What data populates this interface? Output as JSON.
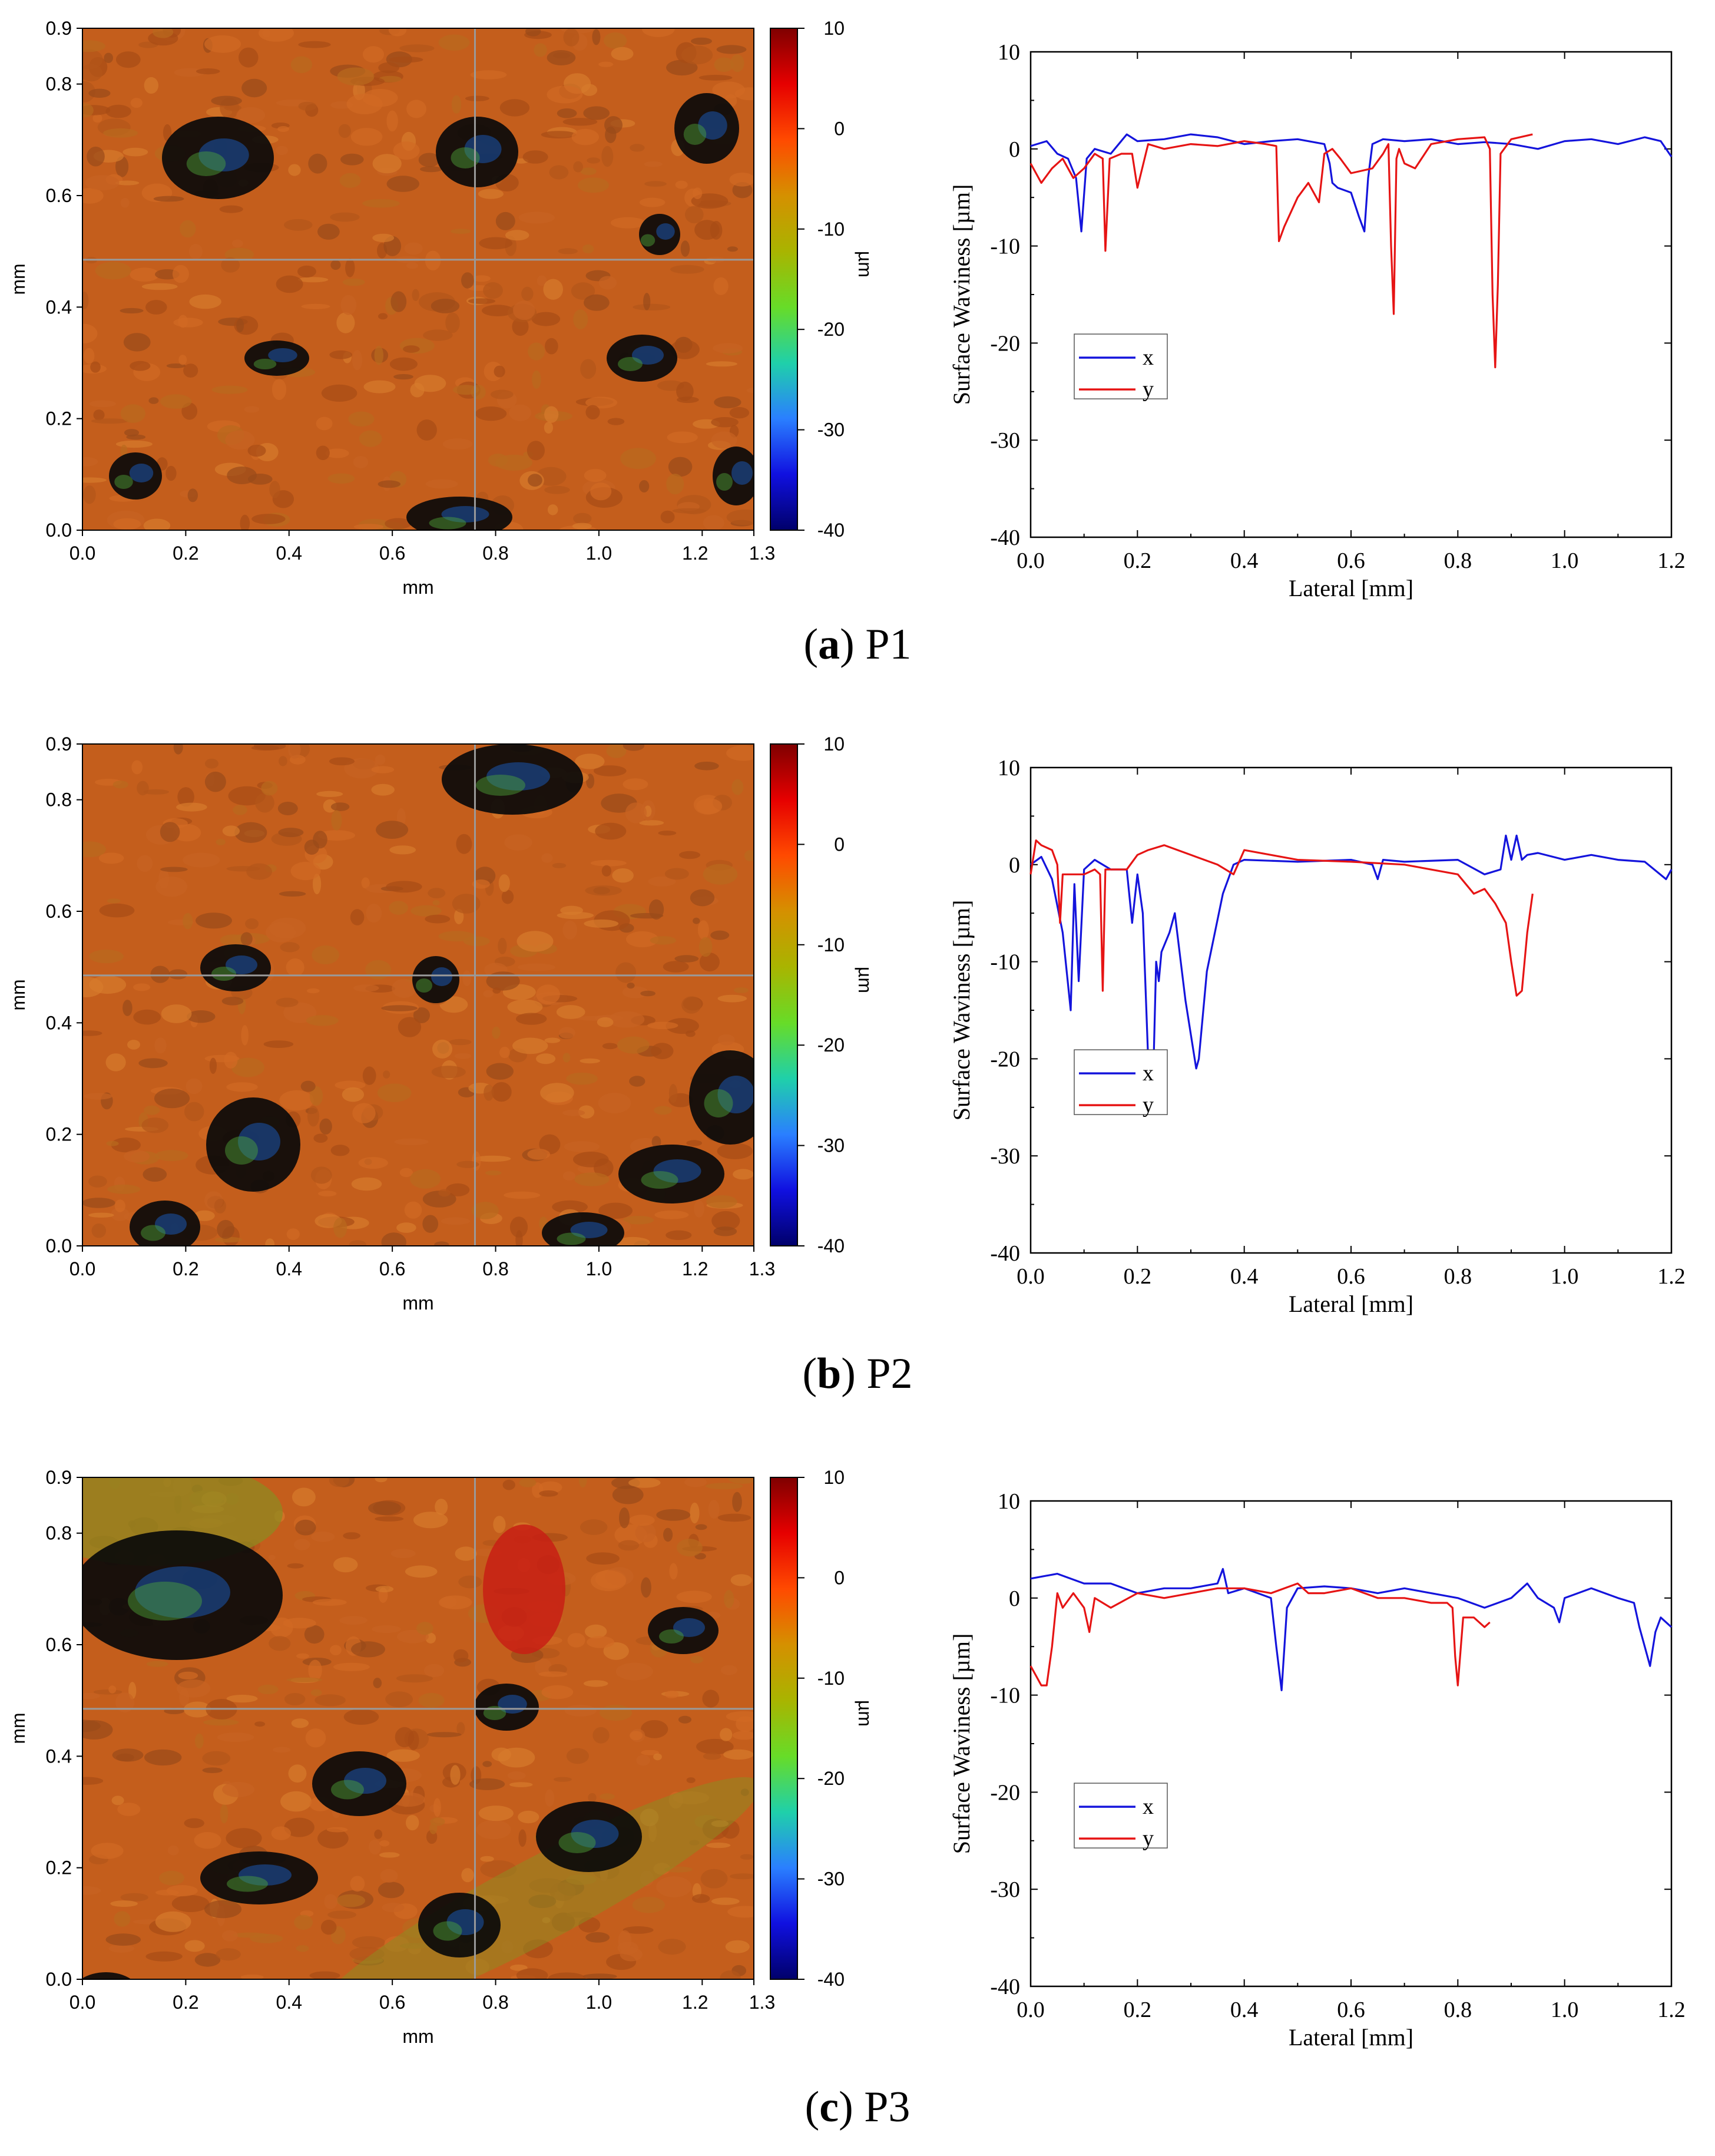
{
  "colors": {
    "x_series": "#1414dc",
    "y_series": "#e61414",
    "colorbar": [
      "#7f0000",
      "#e60000",
      "#ff4a00",
      "#d59000",
      "#a9b400",
      "#67dc28",
      "#1fd0aa",
      "#2a7fff",
      "#1010e0",
      "#00006a"
    ],
    "surface_base": "#c45e1c",
    "surface_dark": "#0a0a0a"
  },
  "panels": [
    {
      "caption_letter": "a",
      "caption_name": "P1",
      "surface_map": {
        "x_ticks": [
          "0.0",
          "0.2",
          "0.4",
          "0.6",
          "0.8",
          "1.0",
          "1.2",
          "1.3"
        ],
        "y_ticks": [
          "0.0",
          "0.2",
          "0.4",
          "0.6",
          "0.8",
          "0.9"
        ],
        "x_label": "mm",
        "y_label": "mm",
        "colorbar_ticks": [
          "10",
          "0",
          "-10",
          "-20",
          "-30",
          "-40"
        ],
        "colorbar_label": "µm"
      }
    },
    {
      "caption_letter": "b",
      "caption_name": "P2",
      "surface_map": {
        "x_ticks": [
          "0.0",
          "0.2",
          "0.4",
          "0.6",
          "0.8",
          "1.0",
          "1.2",
          "1.3"
        ],
        "y_ticks": [
          "0.0",
          "0.2",
          "0.4",
          "0.6",
          "0.8",
          "0.9"
        ],
        "x_label": "mm",
        "y_label": "mm",
        "colorbar_ticks": [
          "10",
          "0",
          "-10",
          "-20",
          "-30",
          "-40"
        ],
        "colorbar_label": "µm"
      }
    },
    {
      "caption_letter": "c",
      "caption_name": "P3",
      "surface_map": {
        "x_ticks": [
          "0.0",
          "0.2",
          "0.4",
          "0.6",
          "0.8",
          "1.0",
          "1.2",
          "1.3"
        ],
        "y_ticks": [
          "0.0",
          "0.2",
          "0.4",
          "0.6",
          "0.8",
          "0.9"
        ],
        "x_label": "mm",
        "y_label": "mm",
        "colorbar_ticks": [
          "10",
          "0",
          "-10",
          "-20",
          "-30",
          "-40"
        ],
        "colorbar_label": "µm"
      }
    }
  ],
  "chart_data": [
    {
      "type": "line",
      "title": "(a) P1",
      "xlabel": "Lateral [mm]",
      "ylabel": "Surface Waviness [µm]",
      "xlim": [
        0,
        1.2
      ],
      "ylim": [
        -40,
        10
      ],
      "x_ticks": [
        "0.0",
        "0.2",
        "0.4",
        "0.6",
        "0.8",
        "1.0",
        "1.2"
      ],
      "y_ticks": [
        "10",
        "0",
        "-10",
        "-20",
        "-30",
        "-40"
      ],
      "legend_position": "lower-left",
      "series": [
        {
          "name": "x",
          "x": [
            0,
            0.03,
            0.05,
            0.07,
            0.085,
            0.095,
            0.105,
            0.12,
            0.15,
            0.18,
            0.2,
            0.25,
            0.3,
            0.35,
            0.4,
            0.45,
            0.5,
            0.55,
            0.56,
            0.565,
            0.575,
            0.6,
            0.615,
            0.625,
            0.632,
            0.64,
            0.66,
            0.7,
            0.75,
            0.8,
            0.85,
            0.9,
            0.95,
            1.0,
            1.05,
            1.1,
            1.15,
            1.18,
            1.2
          ],
          "y": [
            0.3,
            0.8,
            -0.5,
            -1,
            -3,
            -8.5,
            -1,
            0,
            -0.5,
            1.5,
            0.8,
            1,
            1.5,
            1.2,
            0.5,
            0.8,
            1,
            0.5,
            -1.5,
            -3.5,
            -4,
            -4.5,
            -7,
            -8.5,
            -3,
            0.5,
            1,
            0.8,
            1,
            0.5,
            0.7,
            0.5,
            0,
            0.8,
            1,
            0.5,
            1.2,
            0.8,
            -0.8
          ]
        },
        {
          "name": "y",
          "x": [
            0,
            0.02,
            0.04,
            0.06,
            0.08,
            0.1,
            0.12,
            0.135,
            0.14,
            0.148,
            0.17,
            0.19,
            0.2,
            0.22,
            0.25,
            0.3,
            0.35,
            0.4,
            0.44,
            0.46,
            0.465,
            0.475,
            0.5,
            0.52,
            0.54,
            0.55,
            0.565,
            0.58,
            0.6,
            0.64,
            0.66,
            0.67,
            0.675,
            0.68,
            0.685,
            0.69,
            0.7,
            0.72,
            0.75,
            0.8,
            0.85,
            0.86,
            0.865,
            0.87,
            0.875,
            0.88,
            0.9,
            0.94
          ],
          "y": [
            -1.5,
            -3.5,
            -2,
            -1,
            -3,
            -2,
            -0.5,
            -1,
            -10.5,
            -1,
            -0.5,
            -0.5,
            -4,
            0.5,
            0,
            0.5,
            0.3,
            0.8,
            0.5,
            0.3,
            -9.5,
            -8,
            -5,
            -3.5,
            -5.5,
            -0.5,
            0,
            -1,
            -2.5,
            -2,
            -0.5,
            0.5,
            -10,
            -17,
            -1,
            0,
            -1.5,
            -2,
            0.5,
            1,
            1.2,
            0,
            -15,
            -22.5,
            -14,
            -0.5,
            1,
            1.5
          ]
        }
      ]
    },
    {
      "type": "line",
      "title": "(b) P2",
      "xlabel": "Lateral [mm]",
      "ylabel": "Surface Waviness [µm]",
      "xlim": [
        0,
        1.2
      ],
      "ylim": [
        -40,
        10
      ],
      "x_ticks": [
        "0.0",
        "0.2",
        "0.4",
        "0.6",
        "0.8",
        "1.0",
        "1.2"
      ],
      "y_ticks": [
        "10",
        "0",
        "-10",
        "-20",
        "-30",
        "-40"
      ],
      "legend_position": "lower-left",
      "series": [
        {
          "name": "x",
          "x": [
            0,
            0.02,
            0.04,
            0.06,
            0.075,
            0.082,
            0.09,
            0.1,
            0.12,
            0.15,
            0.18,
            0.19,
            0.2,
            0.21,
            0.22,
            0.23,
            0.235,
            0.24,
            0.245,
            0.26,
            0.27,
            0.29,
            0.31,
            0.315,
            0.33,
            0.36,
            0.38,
            0.4,
            0.5,
            0.6,
            0.64,
            0.65,
            0.66,
            0.7,
            0.8,
            0.85,
            0.88,
            0.89,
            0.9,
            0.91,
            0.92,
            0.93,
            0.95,
            1.0,
            1.05,
            1.1,
            1.15,
            1.19,
            1.2
          ],
          "y": [
            0,
            0.8,
            -1.5,
            -7,
            -15,
            -2,
            -12,
            -0.5,
            0.5,
            -0.5,
            -0.5,
            -6,
            -1,
            -5,
            -20,
            -21,
            -10,
            -12,
            -9,
            -7,
            -5,
            -14,
            -21,
            -20,
            -11,
            -3,
            0,
            0.5,
            0.3,
            0.5,
            0,
            -1.5,
            0.5,
            0.3,
            0.5,
            -1,
            -0.5,
            3,
            0.5,
            3,
            0.5,
            1,
            1.2,
            0.5,
            1,
            0.5,
            0.3,
            -1.5,
            -0.5
          ]
        },
        {
          "name": "y",
          "x": [
            0,
            0.01,
            0.02,
            0.04,
            0.05,
            0.055,
            0.06,
            0.08,
            0.1,
            0.12,
            0.13,
            0.135,
            0.14,
            0.18,
            0.2,
            0.22,
            0.25,
            0.3,
            0.35,
            0.38,
            0.4,
            0.45,
            0.5,
            0.6,
            0.7,
            0.8,
            0.83,
            0.85,
            0.87,
            0.89,
            0.9,
            0.91,
            0.92,
            0.93,
            0.94
          ],
          "y": [
            -1,
            2.5,
            2,
            1.5,
            0,
            -6,
            -1,
            -1,
            -1,
            -0.5,
            -1,
            -13,
            -0.5,
            -0.5,
            1,
            1.5,
            2,
            1,
            0,
            -1,
            1.5,
            1,
            0.5,
            0.3,
            0,
            -1,
            -3,
            -2.5,
            -4,
            -6,
            -10,
            -13.5,
            -13,
            -7,
            -3
          ]
        }
      ]
    },
    {
      "type": "line",
      "title": "(c) P3",
      "xlabel": "Lateral [mm]",
      "ylabel": "Surface Waviness [µm]",
      "xlim": [
        0,
        1.2
      ],
      "ylim": [
        -40,
        10
      ],
      "x_ticks": [
        "0.0",
        "0.2",
        "0.4",
        "0.6",
        "0.8",
        "1.0",
        "1.2"
      ],
      "y_ticks": [
        "10",
        "0",
        "-10",
        "-20",
        "-30",
        "-40"
      ],
      "legend_position": "lower-left",
      "series": [
        {
          "name": "x",
          "x": [
            0,
            0.05,
            0.1,
            0.15,
            0.2,
            0.25,
            0.3,
            0.35,
            0.36,
            0.37,
            0.4,
            0.45,
            0.46,
            0.47,
            0.48,
            0.5,
            0.55,
            0.6,
            0.65,
            0.7,
            0.75,
            0.8,
            0.85,
            0.9,
            0.93,
            0.95,
            0.98,
            0.99,
            1.0,
            1.05,
            1.1,
            1.13,
            1.14,
            1.15,
            1.16,
            1.17,
            1.18,
            1.2
          ],
          "y": [
            2,
            2.5,
            1.5,
            1.5,
            0.5,
            1,
            1,
            1.5,
            3,
            0.5,
            1,
            0,
            -5,
            -9.5,
            -1,
            1,
            1.2,
            1,
            0.5,
            1,
            0.5,
            0,
            -1,
            0,
            1.5,
            0,
            -1,
            -2.5,
            0,
            1,
            0,
            -0.5,
            -3,
            -5,
            -7,
            -3.5,
            -2,
            -3
          ]
        },
        {
          "name": "y",
          "x": [
            0,
            0.01,
            0.02,
            0.03,
            0.04,
            0.05,
            0.06,
            0.08,
            0.1,
            0.11,
            0.12,
            0.15,
            0.2,
            0.25,
            0.3,
            0.35,
            0.4,
            0.45,
            0.5,
            0.52,
            0.55,
            0.6,
            0.65,
            0.7,
            0.75,
            0.78,
            0.79,
            0.795,
            0.8,
            0.81,
            0.83,
            0.85,
            0.86
          ],
          "y": [
            -7,
            -8,
            -9,
            -9,
            -5,
            0.5,
            -1,
            0.5,
            -1,
            -3.5,
            0,
            -1,
            0.5,
            0,
            0.5,
            1,
            1,
            0.5,
            1.5,
            0.5,
            0.5,
            1,
            0,
            0,
            -0.5,
            -0.5,
            -1,
            -6,
            -9,
            -2,
            -2,
            -3,
            -2.5
          ]
        }
      ]
    }
  ]
}
